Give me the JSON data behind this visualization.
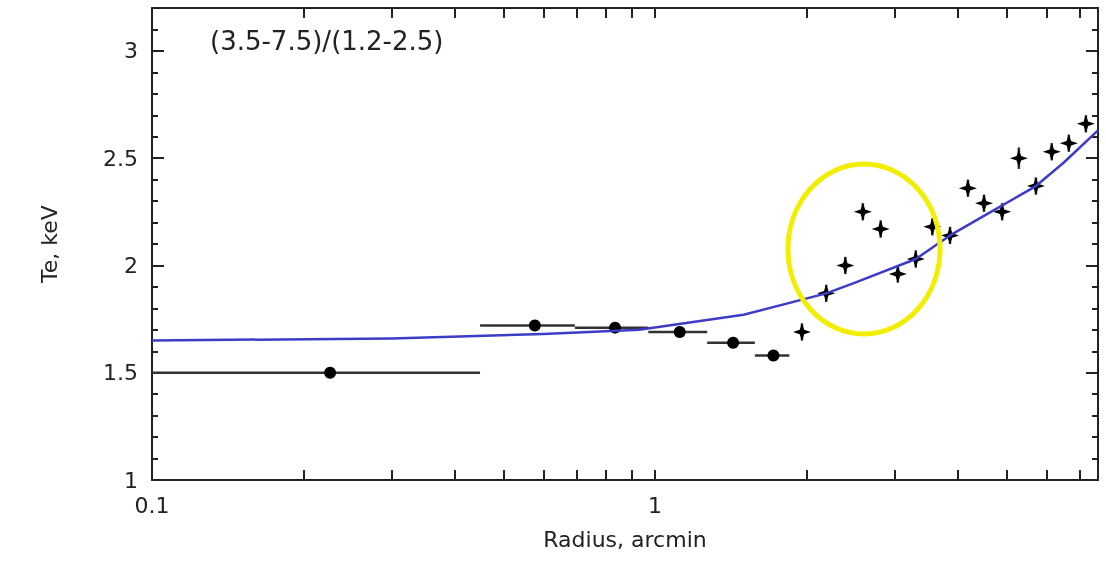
{
  "chart_data": {
    "type": "scatter",
    "xlabel": "Radius, arcmin",
    "ylabel": "Te, keV",
    "annotations": [
      "(3.5-7.5)/(1.2-2.5)"
    ],
    "log": "x",
    "grid": false,
    "xlim": [
      0.1,
      7.6
    ],
    "ylim": [
      1,
      3.2
    ],
    "xticks": [
      0.1,
      {
        "value": 0.2,
        "label": null
      },
      {
        "value": 0.3,
        "label": null
      },
      {
        "value": 0.4,
        "label": null
      },
      {
        "value": 0.5,
        "label": null
      },
      {
        "value": 0.6,
        "label": null
      },
      {
        "value": 0.7,
        "label": null
      },
      {
        "value": 0.8,
        "label": null
      },
      {
        "value": 0.9,
        "label": null
      },
      1,
      {
        "value": 2,
        "label": null
      },
      {
        "value": 3,
        "label": null
      },
      {
        "value": 4,
        "label": null
      },
      {
        "value": 5,
        "label": null
      },
      {
        "value": 6,
        "label": null
      },
      {
        "value": 7,
        "label": null
      }
    ],
    "yticks": [
      1,
      1.5,
      2,
      2.5,
      3
    ],
    "series": [
      {
        "marker": "circle",
        "color": "#000000",
        "x": [
          0.226,
          0.577,
          0.833,
          1.12,
          1.43,
          1.72
        ],
        "values": [
          1.5,
          1.72,
          1.71,
          1.69,
          1.64,
          1.58
        ],
        "xerrors": [
          [
            0.1,
            0.449
          ],
          [
            0.449,
            0.693
          ],
          [
            0.693,
            0.97
          ],
          [
            0.97,
            1.27
          ],
          [
            1.27,
            1.58
          ],
          [
            1.58,
            1.85
          ]
        ]
      },
      {
        "marker": "diamond",
        "color": "#000000",
        "x": [
          1.96,
          2.19,
          2.39,
          2.59,
          2.81,
          3.04,
          3.3,
          3.56,
          3.86,
          4.19,
          4.51,
          4.9,
          5.29,
          5.72,
          6.15,
          6.65,
          7.19
        ],
        "values": [
          1.69,
          1.87,
          2.0,
          2.25,
          2.17,
          1.96,
          2.03,
          2.18,
          2.14,
          2.36,
          2.29,
          2.25,
          2.5,
          2.37,
          2.53,
          2.57,
          2.66
        ],
        "errors": [
          0.04,
          0.04,
          0.04,
          0.04,
          0.04,
          0.04,
          0.04,
          0.04,
          0.04,
          0.04,
          0.04,
          0.04,
          0.05,
          0.04,
          0.04,
          0.04,
          0.04
        ]
      },
      {
        "type": "line",
        "marker": "none",
        "color": "#3c3cc8",
        "x": [
          0.1,
          0.3,
          0.6,
          0.93,
          1.5,
          2.19,
          2.5,
          3.3,
          3.86,
          4.5,
          5.72,
          6.5,
          7.6
        ],
        "values": [
          1.65,
          1.66,
          1.68,
          1.7,
          1.77,
          1.87,
          1.92,
          2.03,
          2.14,
          2.23,
          2.37,
          2.48,
          2.63
        ]
      }
    ]
  }
}
